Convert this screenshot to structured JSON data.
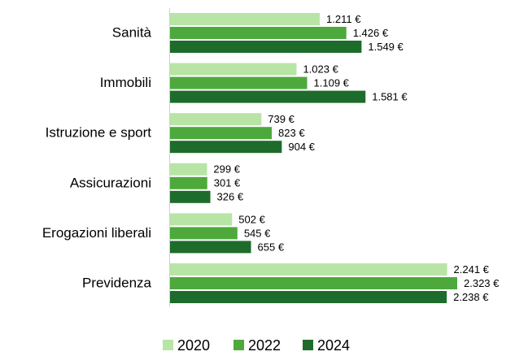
{
  "chart_data": {
    "type": "bar",
    "orientation": "horizontal",
    "categories": [
      "Sanità",
      "Immobili",
      "Istruzione e sport",
      "Assicurazioni",
      "Erogazioni liberali",
      "Previdenza"
    ],
    "series": [
      {
        "name": "2020",
        "color": "#b8e4a6",
        "values": [
          1211,
          1023,
          739,
          299,
          502,
          2241
        ],
        "value_labels": [
          "1.211 €",
          "1.023 €",
          "739 €",
          "299 €",
          "502 €",
          "2.241 €"
        ]
      },
      {
        "name": "2022",
        "color": "#4ea93c",
        "values": [
          1426,
          1109,
          823,
          301,
          545,
          2323
        ],
        "value_labels": [
          "1.426 €",
          "1.109 €",
          "823 €",
          "301 €",
          "545 €",
          "2.323 €"
        ]
      },
      {
        "name": "2024",
        "color": "#1e6c2b",
        "values": [
          1549,
          1581,
          904,
          326,
          655,
          2238
        ],
        "value_labels": [
          "1.549 €",
          "1.581 €",
          "904 €",
          "326 €",
          "655 €",
          "2.238 €"
        ]
      }
    ],
    "legend": "bottom"
  }
}
